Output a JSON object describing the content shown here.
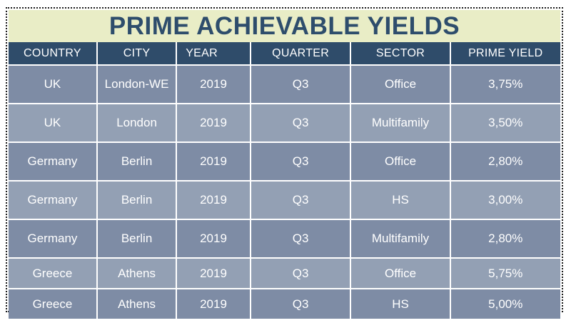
{
  "title": "PRIME ACHIEVABLE YIELDS",
  "colors": {
    "title_bg": "#e9edc6",
    "title_text": "#2e4d6c",
    "header_bg": "#2f4c6a",
    "row_dark": "#7e8ca5",
    "row_light": "#93a0b4",
    "separator": "#ffffff",
    "frame_border": "#1c1c1c"
  },
  "chart_data": {
    "type": "table",
    "title": "PRIME ACHIEVABLE YIELDS",
    "columns": [
      "COUNTRY",
      "CITY",
      "YEAR",
      "QUARTER",
      "SECTOR",
      "PRIME YIELD"
    ],
    "rows": [
      [
        "UK",
        "London-WE",
        "2019",
        "Q3",
        "Office",
        "3,75%"
      ],
      [
        "UK",
        "London",
        "2019",
        "Q3",
        "Multifamily",
        "3,50%"
      ],
      [
        "Germany",
        "Berlin",
        "2019",
        "Q3",
        "Office",
        "2,80%"
      ],
      [
        "Germany",
        "Berlin",
        "2019",
        "Q3",
        "HS",
        "3,00%"
      ],
      [
        "Germany",
        "Berlin",
        "2019",
        "Q3",
        "Multifamily",
        "2,80%"
      ],
      [
        "Greece",
        "Athens",
        "2019",
        "Q3",
        "Office",
        "5,75%"
      ],
      [
        "Greece",
        "Athens",
        "2019",
        "Q3",
        "HS",
        "5,00%"
      ]
    ]
  }
}
